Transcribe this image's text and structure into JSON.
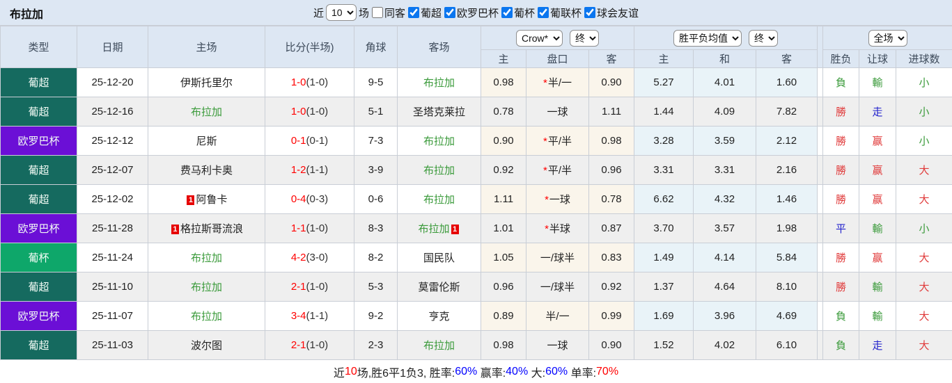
{
  "title": "布拉加",
  "filters": {
    "recent_label": "近",
    "matches_count": "10",
    "matches_label": "场",
    "same_away": {
      "label": "同客",
      "checked": false
    },
    "leagues": [
      {
        "label": "葡超",
        "checked": true
      },
      {
        "label": "欧罗巴杯",
        "checked": true
      },
      {
        "label": "葡杯",
        "checked": true
      },
      {
        "label": "葡联杯",
        "checked": true
      },
      {
        "label": "球会友谊",
        "checked": true
      }
    ]
  },
  "table": {
    "headers": {
      "type": "类型",
      "date": "日期",
      "home": "主场",
      "score": "比分(半场)",
      "corner": "角球",
      "away": "客场",
      "ah_company_select": "Crow*",
      "ah_state_select": "终",
      "ah_home": "主",
      "ah_line": "盘口",
      "ah_away": "客",
      "avg_select": "胜平负均值",
      "avg_state_select": "终",
      "avg_home": "主",
      "avg_draw": "和",
      "avg_away": "客",
      "scope_select": "全场",
      "result_wl": "胜负",
      "result_handicap": "让球",
      "result_goals": "进球数"
    },
    "league_colors": {
      "葡超": "#156a5f",
      "欧罗巴杯": "#6b0fd6",
      "葡杯": "#0ea76a"
    },
    "rows": [
      {
        "league": "葡超",
        "date": "25-12-20",
        "home": {
          "name": "伊斯托里尔",
          "braga": false,
          "red": null
        },
        "score": {
          "ft": "1-0",
          "ht": "(1-0)"
        },
        "corner": "9-5",
        "away": {
          "name": "布拉加",
          "braga": true,
          "red": null
        },
        "ah": {
          "home": "0.98",
          "star": true,
          "line": "半/一",
          "away": "0.90"
        },
        "avg": {
          "home": "5.27",
          "draw": "4.01",
          "away": "1.60"
        },
        "res": {
          "wl": [
            "負",
            "green"
          ],
          "hc": [
            "輸",
            "green"
          ],
          "goal": [
            "小",
            "green"
          ]
        }
      },
      {
        "league": "葡超",
        "date": "25-12-16",
        "home": {
          "name": "布拉加",
          "braga": true,
          "red": null
        },
        "score": {
          "ft": "1-0",
          "ht": "(1-0)"
        },
        "corner": "5-1",
        "away": {
          "name": "圣塔克莱拉",
          "braga": false,
          "red": null
        },
        "ah": {
          "home": "0.78",
          "star": false,
          "line": "一球",
          "away": "1.11"
        },
        "avg": {
          "home": "1.44",
          "draw": "4.09",
          "away": "7.82"
        },
        "res": {
          "wl": [
            "勝",
            "red"
          ],
          "hc": [
            "走",
            "blue"
          ],
          "goal": [
            "小",
            "green"
          ]
        }
      },
      {
        "league": "欧罗巴杯",
        "date": "25-12-12",
        "home": {
          "name": "尼斯",
          "braga": false,
          "red": null
        },
        "score": {
          "ft": "0-1",
          "ht": "(0-1)"
        },
        "corner": "7-3",
        "away": {
          "name": "布拉加",
          "braga": true,
          "red": null
        },
        "ah": {
          "home": "0.90",
          "star": true,
          "line": "平/半",
          "away": "0.98"
        },
        "avg": {
          "home": "3.28",
          "draw": "3.59",
          "away": "2.12"
        },
        "res": {
          "wl": [
            "勝",
            "red"
          ],
          "hc": [
            "赢",
            "red"
          ],
          "goal": [
            "小",
            "green"
          ]
        }
      },
      {
        "league": "葡超",
        "date": "25-12-07",
        "home": {
          "name": "费马利卡奥",
          "braga": false,
          "red": null
        },
        "score": {
          "ft": "1-2",
          "ht": "(1-1)"
        },
        "corner": "3-9",
        "away": {
          "name": "布拉加",
          "braga": true,
          "red": null
        },
        "ah": {
          "home": "0.92",
          "star": true,
          "line": "平/半",
          "away": "0.96"
        },
        "avg": {
          "home": "3.31",
          "draw": "3.31",
          "away": "2.16"
        },
        "res": {
          "wl": [
            "勝",
            "red"
          ],
          "hc": [
            "赢",
            "red"
          ],
          "goal": [
            "大",
            "red"
          ]
        }
      },
      {
        "league": "葡超",
        "date": "25-12-02",
        "home": {
          "name": "阿鲁卡",
          "braga": false,
          "red": "1"
        },
        "score": {
          "ft": "0-4",
          "ht": "(0-3)"
        },
        "corner": "0-6",
        "away": {
          "name": "布拉加",
          "braga": true,
          "red": null
        },
        "ah": {
          "home": "1.11",
          "star": true,
          "line": "一球",
          "away": "0.78"
        },
        "avg": {
          "home": "6.62",
          "draw": "4.32",
          "away": "1.46"
        },
        "res": {
          "wl": [
            "勝",
            "red"
          ],
          "hc": [
            "赢",
            "red"
          ],
          "goal": [
            "大",
            "red"
          ]
        }
      },
      {
        "league": "欧罗巴杯",
        "date": "25-11-28",
        "home": {
          "name": "格拉斯哥流浪",
          "braga": false,
          "red": "1"
        },
        "score": {
          "ft": "1-1",
          "ht": "(1-0)"
        },
        "corner": "8-3",
        "away": {
          "name": "布拉加",
          "braga": true,
          "red": "1"
        },
        "ah": {
          "home": "1.01",
          "star": true,
          "line": "半球",
          "away": "0.87"
        },
        "avg": {
          "home": "3.70",
          "draw": "3.57",
          "away": "1.98"
        },
        "res": {
          "wl": [
            "平",
            "blue"
          ],
          "hc": [
            "輸",
            "green"
          ],
          "goal": [
            "小",
            "green"
          ]
        }
      },
      {
        "league": "葡杯",
        "date": "25-11-24",
        "home": {
          "name": "布拉加",
          "braga": true,
          "red": null
        },
        "score": {
          "ft": "4-2",
          "ht": "(3-0)"
        },
        "corner": "8-2",
        "away": {
          "name": "国民队",
          "braga": false,
          "red": null
        },
        "ah": {
          "home": "1.05",
          "star": false,
          "line": "一/球半",
          "away": "0.83"
        },
        "avg": {
          "home": "1.49",
          "draw": "4.14",
          "away": "5.84"
        },
        "res": {
          "wl": [
            "勝",
            "red"
          ],
          "hc": [
            "赢",
            "red"
          ],
          "goal": [
            "大",
            "red"
          ]
        }
      },
      {
        "league": "葡超",
        "date": "25-11-10",
        "home": {
          "name": "布拉加",
          "braga": true,
          "red": null
        },
        "score": {
          "ft": "2-1",
          "ht": "(1-0)"
        },
        "corner": "5-3",
        "away": {
          "name": "莫雷伦斯",
          "braga": false,
          "red": null
        },
        "ah": {
          "home": "0.96",
          "star": false,
          "line": "一/球半",
          "away": "0.92"
        },
        "avg": {
          "home": "1.37",
          "draw": "4.64",
          "away": "8.10"
        },
        "res": {
          "wl": [
            "勝",
            "red"
          ],
          "hc": [
            "輸",
            "green"
          ],
          "goal": [
            "大",
            "red"
          ]
        }
      },
      {
        "league": "欧罗巴杯",
        "date": "25-11-07",
        "home": {
          "name": "布拉加",
          "braga": true,
          "red": null
        },
        "score": {
          "ft": "3-4",
          "ht": "(1-1)"
        },
        "corner": "9-2",
        "away": {
          "name": "亨克",
          "braga": false,
          "red": null
        },
        "ah": {
          "home": "0.89",
          "star": false,
          "line": "半/一",
          "away": "0.99"
        },
        "avg": {
          "home": "1.69",
          "draw": "3.96",
          "away": "4.69"
        },
        "res": {
          "wl": [
            "負",
            "green"
          ],
          "hc": [
            "輸",
            "green"
          ],
          "goal": [
            "大",
            "red"
          ]
        }
      },
      {
        "league": "葡超",
        "date": "25-11-03",
        "home": {
          "name": "波尔图",
          "braga": false,
          "red": null
        },
        "score": {
          "ft": "2-1",
          "ht": "(1-0)"
        },
        "corner": "2-3",
        "away": {
          "name": "布拉加",
          "braga": true,
          "red": null
        },
        "ah": {
          "home": "0.98",
          "star": false,
          "line": "一球",
          "away": "0.90"
        },
        "avg": {
          "home": "1.52",
          "draw": "4.02",
          "away": "6.10"
        },
        "res": {
          "wl": [
            "負",
            "green"
          ],
          "hc": [
            "走",
            "blue"
          ],
          "goal": [
            "大",
            "red"
          ]
        }
      }
    ]
  },
  "footer": {
    "parts": [
      {
        "text": "近"
      },
      {
        "text": "10",
        "color": "red"
      },
      {
        "text": "场,胜6平1负3, 胜率:"
      },
      {
        "text": "60%",
        "color": "blue"
      },
      {
        "text": " 赢率:"
      },
      {
        "text": "40%",
        "color": "blue"
      },
      {
        "text": " 大:"
      },
      {
        "text": "60%",
        "color": "blue"
      },
      {
        "text": " 单率:"
      },
      {
        "text": "70%",
        "color": "red"
      }
    ]
  }
}
